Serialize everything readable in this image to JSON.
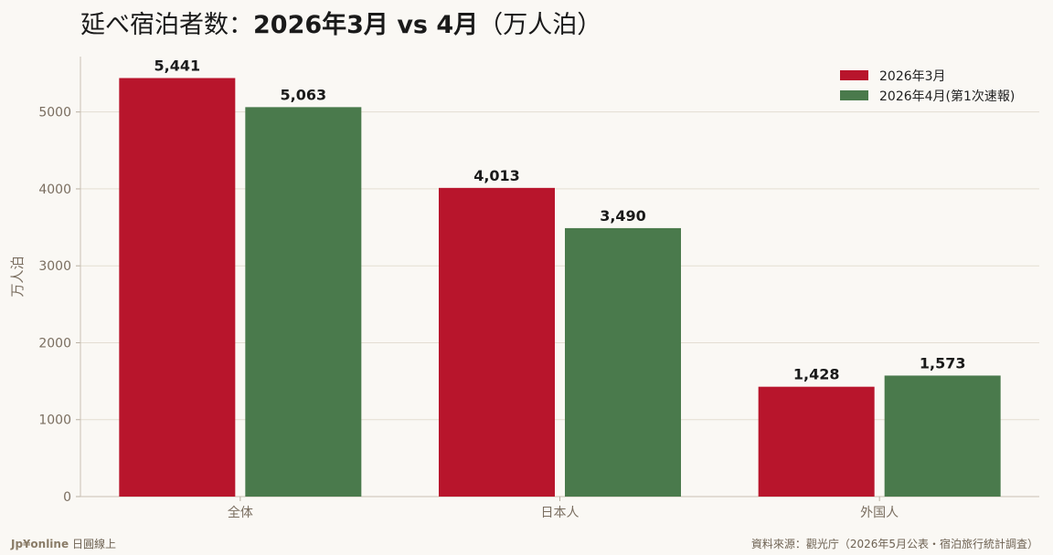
{
  "title": {
    "prefix": "延べ宿泊者数：",
    "main": "2026年3月 vs 4月",
    "suffix": "（万人泊）"
  },
  "chart_data": {
    "type": "bar",
    "title": "延べ宿泊者数：2026年3月 vs 4月（万人泊）",
    "categories": [
      "全体",
      "日本人",
      "外国人"
    ],
    "series": [
      {
        "name": "2026年3月",
        "values": [
          5441,
          4013,
          1428
        ],
        "labels": [
          "5,441",
          "4,013",
          "1,428"
        ],
        "color": "#b8152c"
      },
      {
        "name": "2026年4月(第1次速報)",
        "values": [
          5063,
          3490,
          1573
        ],
        "labels": [
          "5,063",
          "3,490",
          "1,573"
        ],
        "color": "#4a7a4c"
      }
    ],
    "ylabel": "万人泊",
    "xlabel": "",
    "ylim": [
      0,
      5720
    ],
    "yticks": [
      0,
      1000,
      2000,
      3000,
      4000,
      5000
    ],
    "grid": true,
    "legend": "top-right"
  },
  "footer": {
    "brand": "Jp¥online",
    "brand_sub": "日圓線上",
    "source": "資料來源：觀光庁（2026年5月公表・宿泊旅行統計調査）"
  }
}
